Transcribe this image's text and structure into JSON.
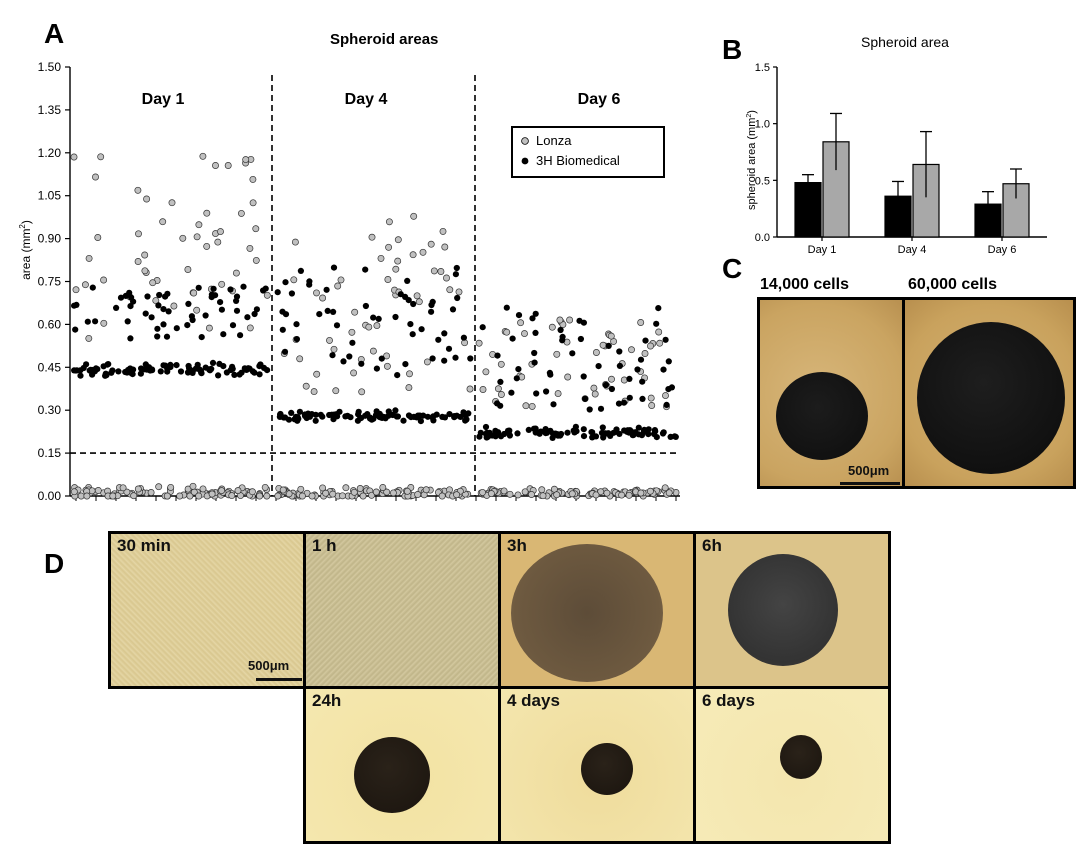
{
  "panel_A": {
    "letter": "A",
    "title": "Spheroid areas",
    "legend": {
      "lonza": "Lonza",
      "biomedical": "3H Biomedical"
    },
    "days": [
      "Day 1",
      "Day 4",
      "Day 6"
    ],
    "ylabel_text": "area (mm",
    "ylabel_sup": "2",
    "ylabel_close": ")"
  },
  "panel_B": {
    "letter": "B",
    "title": "Spheroid area",
    "ylabel_text": "spheroid area (mm",
    "ylabel_sup": "2",
    "ylabel_close": ")"
  },
  "panel_C": {
    "letter": "C",
    "left_label": "14,000 cells",
    "right_label": "60,000 cells",
    "scale": "500μm"
  },
  "panel_D": {
    "letter": "D",
    "scale": "500μm",
    "frames": [
      "30 min",
      "1 h",
      "3h",
      "6h",
      "24h",
      "4 days",
      "6 days"
    ]
  },
  "chart_data": [
    {
      "type": "scatter",
      "title": "Spheroid areas",
      "ylabel": "area (mm2)",
      "ylim": [
        0,
        1.5
      ],
      "yticks": [
        "0.00",
        "0.15",
        "0.30",
        "0.45",
        "0.60",
        "0.75",
        "0.90",
        "1.05",
        "1.20",
        "1.35",
        "1.50"
      ],
      "threshold": 0.15,
      "groups": [
        "Day 1",
        "Day 4",
        "Day 6"
      ],
      "series": [
        {
          "name": "Lonza",
          "color": "#c0c0c0",
          "clusters": [
            {
              "group": "Day 1",
              "mean": 0.75,
              "min": 0.55,
              "max": 1.24
            },
            {
              "group": "Day 1",
              "mean": 0.01,
              "min": 0.0,
              "max": 0.06
            },
            {
              "group": "Day 4",
              "mean": 0.65,
              "min": 0.35,
              "max": 0.99
            },
            {
              "group": "Day 4",
              "mean": 0.01,
              "min": 0.0,
              "max": 0.05
            },
            {
              "group": "Day 6",
              "mean": 0.45,
              "min": 0.3,
              "max": 0.62
            },
            {
              "group": "Day 6",
              "mean": 0.01,
              "min": 0.0,
              "max": 0.05
            }
          ]
        },
        {
          "name": "3H Biomedical",
          "color": "#000000",
          "clusters": [
            {
              "group": "Day 1",
              "mean": 0.44,
              "min": 0.41,
              "max": 0.47
            },
            {
              "group": "Day 1",
              "mean": 0.62,
              "min": 0.55,
              "max": 0.74
            },
            {
              "group": "Day 4",
              "mean": 0.28,
              "min": 0.25,
              "max": 0.3
            },
            {
              "group": "Day 4",
              "mean": 0.55,
              "min": 0.4,
              "max": 0.8
            },
            {
              "group": "Day 6",
              "mean": 0.22,
              "min": 0.19,
              "max": 0.25
            },
            {
              "group": "Day 6",
              "mean": 0.45,
              "min": 0.3,
              "max": 0.66
            }
          ]
        }
      ]
    },
    {
      "type": "bar",
      "title": "Spheroid area",
      "ylabel": "spheroid area (mm2)",
      "ylim": [
        0,
        1.5
      ],
      "yticks": [
        "0.0",
        "0.5",
        "1.0",
        "1.5"
      ],
      "categories": [
        "Day 1",
        "Day 4",
        "Day 6"
      ],
      "series": [
        {
          "color": "#000000",
          "values": [
            0.48,
            0.36,
            0.29
          ],
          "errors": [
            0.07,
            0.13,
            0.11
          ]
        },
        {
          "color": "#a8a8a8",
          "values": [
            0.84,
            0.64,
            0.47
          ],
          "errors": [
            0.25,
            0.29,
            0.13
          ]
        }
      ]
    }
  ]
}
